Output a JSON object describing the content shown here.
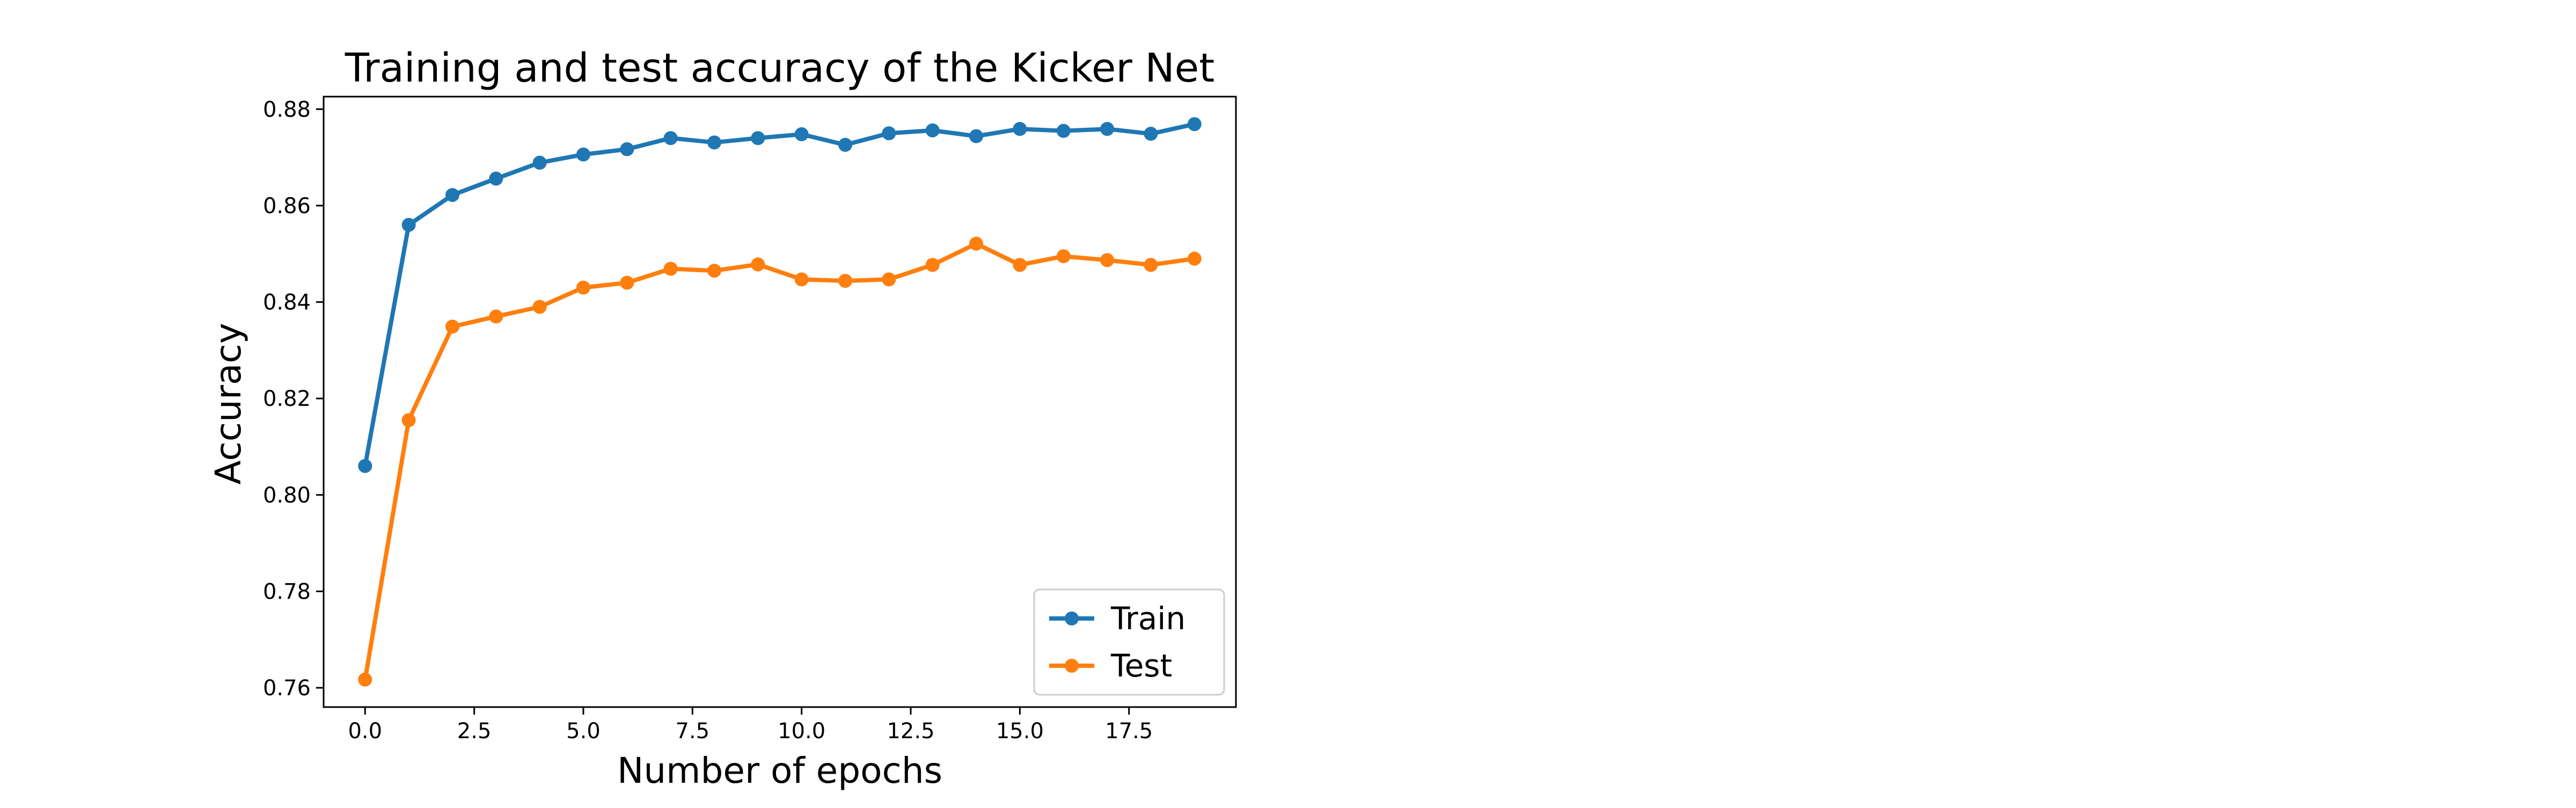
{
  "chart_data": {
    "type": "line",
    "title": "Training and test accuracy of the Kicker Net",
    "xlabel": "Number of epochs",
    "ylabel": "Accuracy",
    "xlim": [
      -0.95,
      19.95
    ],
    "ylim": [
      0.756,
      0.8826
    ],
    "xticks": [
      0,
      2.5,
      5,
      7.5,
      10,
      12.5,
      15,
      17.5
    ],
    "xtick_labels": [
      "0.0",
      "2.5",
      "5.0",
      "7.5",
      "10.0",
      "12.5",
      "15.0",
      "17.5"
    ],
    "yticks": [
      0.76,
      0.78,
      0.8,
      0.82,
      0.84,
      0.86,
      0.88
    ],
    "ytick_labels": [
      "0.76",
      "0.78",
      "0.80",
      "0.82",
      "0.84",
      "0.86",
      "0.88"
    ],
    "grid": false,
    "legend_position": "lower-right",
    "x": [
      0,
      1,
      2,
      3,
      4,
      5,
      6,
      7,
      8,
      9,
      10,
      11,
      12,
      13,
      14,
      15,
      16,
      17,
      18,
      19
    ],
    "series": [
      {
        "name": "Train",
        "color": "#1f77b4",
        "values": [
          0.806,
          0.856,
          0.8622,
          0.8656,
          0.8689,
          0.8706,
          0.8717,
          0.874,
          0.8731,
          0.874,
          0.8748,
          0.8726,
          0.875,
          0.8756,
          0.8744,
          0.8759,
          0.8755,
          0.8759,
          0.8749,
          0.8769
        ]
      },
      {
        "name": "Test",
        "color": "#ff7f0e",
        "values": [
          0.7617,
          0.8155,
          0.8349,
          0.837,
          0.839,
          0.843,
          0.844,
          0.8469,
          0.8465,
          0.8478,
          0.8447,
          0.8444,
          0.8447,
          0.8477,
          0.8521,
          0.8477,
          0.8495,
          0.8487,
          0.8477,
          0.849
        ]
      }
    ]
  }
}
